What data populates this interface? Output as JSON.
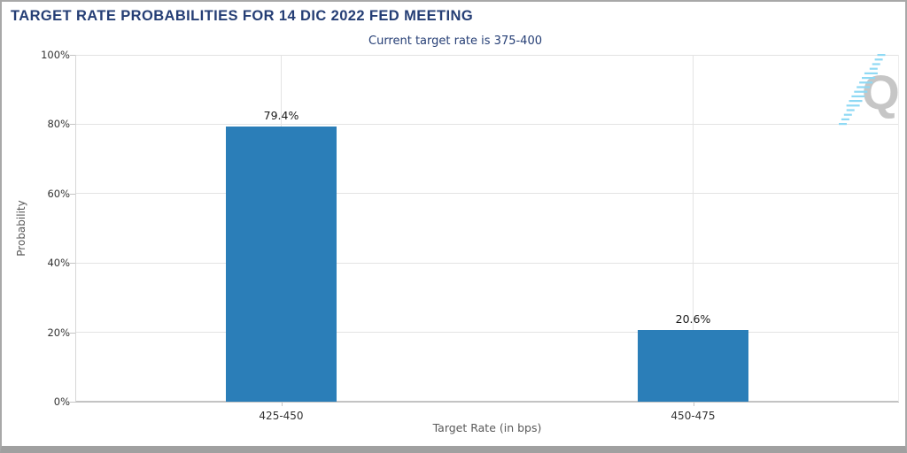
{
  "header": {
    "title": "TARGET RATE PROBABILITIES FOR 14 DIC 2022 FED MEETING",
    "subtitle": "Current target rate is 375-400"
  },
  "watermark": {
    "letter": "Q"
  },
  "colors": {
    "bar": "#2b7eb8",
    "title_text": "#253e75",
    "subtitle_text": "#253e75",
    "grid": "#e3e3e3",
    "spine_left": "#d6d6d6",
    "spine_right": "#ececec",
    "baseline": "#c3c3c3",
    "tick_mark": "#c4c4c4",
    "tick_label_text": "#333333",
    "axis_title_text": "#595959",
    "value_label_text": "#1a1a1a",
    "watermark_letter": "#c6c6c6",
    "watermark_dash": "#8fd9f4"
  },
  "chart_data": {
    "type": "bar",
    "title": "TARGET RATE PROBABILITIES FOR 14 DIC 2022 FED MEETING",
    "subtitle": "Current target rate is 375-400",
    "categories": [
      "425-450",
      "450-475"
    ],
    "values": [
      79.4,
      20.6
    ],
    "value_labels": [
      "79.4%",
      "20.6%"
    ],
    "xlabel": "Target Rate (in bps)",
    "ylabel": "Probability",
    "ylim": [
      0,
      100
    ],
    "yticks": [
      0,
      20,
      40,
      60,
      80,
      100
    ],
    "ytick_labels": [
      "0%",
      "20%",
      "40%",
      "60%",
      "80%",
      "100%"
    ],
    "grid": true,
    "legend": "none"
  }
}
